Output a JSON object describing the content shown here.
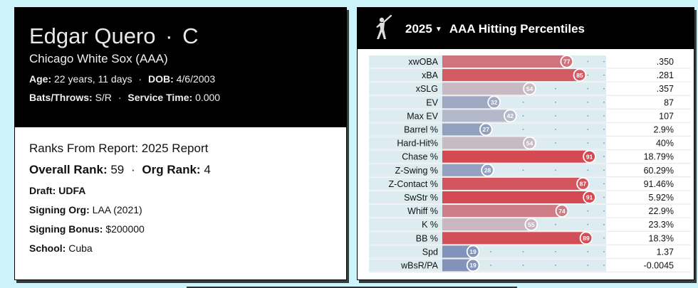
{
  "player": {
    "name": "Edgar Quero",
    "position": "C",
    "team": "Chicago White Sox (AAA)",
    "age_label": "Age:",
    "age": "22 years, 11 days",
    "dob_label": "DOB:",
    "dob": "4/6/2003",
    "bats_throws_label": "Bats/Throws:",
    "bats_throws": "S/R",
    "service_time_label": "Service Time:",
    "service_time": "0.000"
  },
  "report": {
    "ranks_title": "Ranks From Report: 2025 Report",
    "overall_rank_label": "Overall Rank:",
    "overall_rank": "59",
    "org_rank_label": "Org Rank:",
    "org_rank": "4",
    "draft_label": "Draft:",
    "draft": "UDFA",
    "signing_org_label": "Signing Org:",
    "signing_org": "LAA (2021)",
    "signing_bonus_label": "Signing Bonus:",
    "signing_bonus": "$200000",
    "school_label": "School:",
    "school": "Cuba"
  },
  "percentile_panel": {
    "season": "2025",
    "title": "AAA Hitting Percentiles",
    "icon": "batter-icon",
    "dropdown_icon": "caret-down-icon"
  },
  "chart_data": {
    "type": "bar",
    "orientation": "horizontal",
    "title": "AAA Hitting Percentiles",
    "xlim": [
      0,
      100
    ],
    "categories": [
      "xwOBA",
      "xBA",
      "xSLG",
      "EV",
      "Max EV",
      "Barrel %",
      "Hard-Hit%",
      "Chase %",
      "Z-Swing %",
      "Z-Contact %",
      "SwStr %",
      "Whiff %",
      "K %",
      "BB %",
      "Spd",
      "wBsR/PA"
    ],
    "values": [
      77,
      85,
      54,
      32,
      42,
      27,
      54,
      91,
      28,
      87,
      91,
      74,
      55,
      89,
      19,
      19
    ],
    "stat_values": [
      ".350",
      ".281",
      ".357",
      "87",
      "107",
      "2.9%",
      "40%",
      "18.79%",
      "60.29%",
      "91.46%",
      "5.92%",
      "22.9%",
      "23.3%",
      "18.3%",
      "1.37",
      "-0.0045"
    ]
  }
}
